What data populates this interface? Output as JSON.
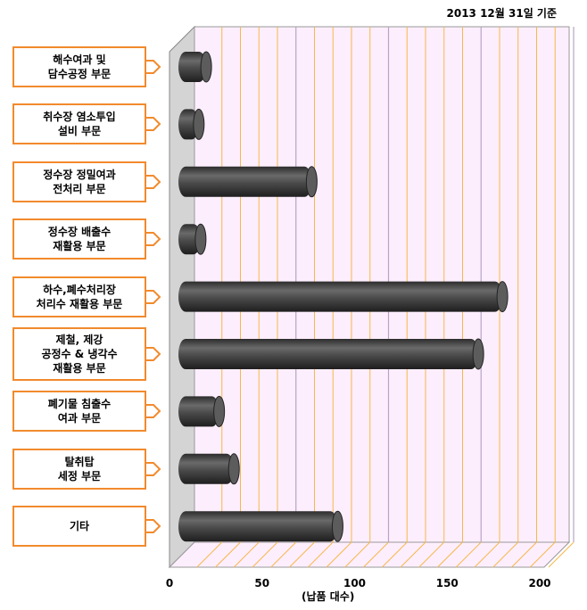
{
  "note": "2013 12월 31일 기준",
  "chart_data": {
    "type": "bar",
    "orientation": "horizontal",
    "categories": [
      "해수여과 및\n담수공정 부문",
      "취수장 염소투입\n설비 부문",
      "정수장 정밀여과\n전처리 부문",
      "정수장 배출수\n재활용 부문",
      "하수,폐수처리장\n처리수 재활용 부문",
      "제철, 제강\n공정수 & 냉각수\n재활용 부문",
      "폐기물 침출수\n여과 부문",
      "탈취탑\n세정 부문",
      "기타"
    ],
    "values": [
      15,
      11,
      72,
      12,
      175,
      162,
      22,
      30,
      86
    ],
    "xlabel": "(납품 대수)",
    "xlim": [
      0,
      200
    ],
    "xticks": [
      0,
      50,
      100,
      150,
      200
    ],
    "grid": true,
    "colors": {
      "bar": "#4a4a4a",
      "plot_bg": "#fdeefd",
      "grid_major": "#b8a4c4",
      "grid_minor": "#f5b84a",
      "label_border": "#f28a2d",
      "wall": "#d4d4d4"
    }
  }
}
